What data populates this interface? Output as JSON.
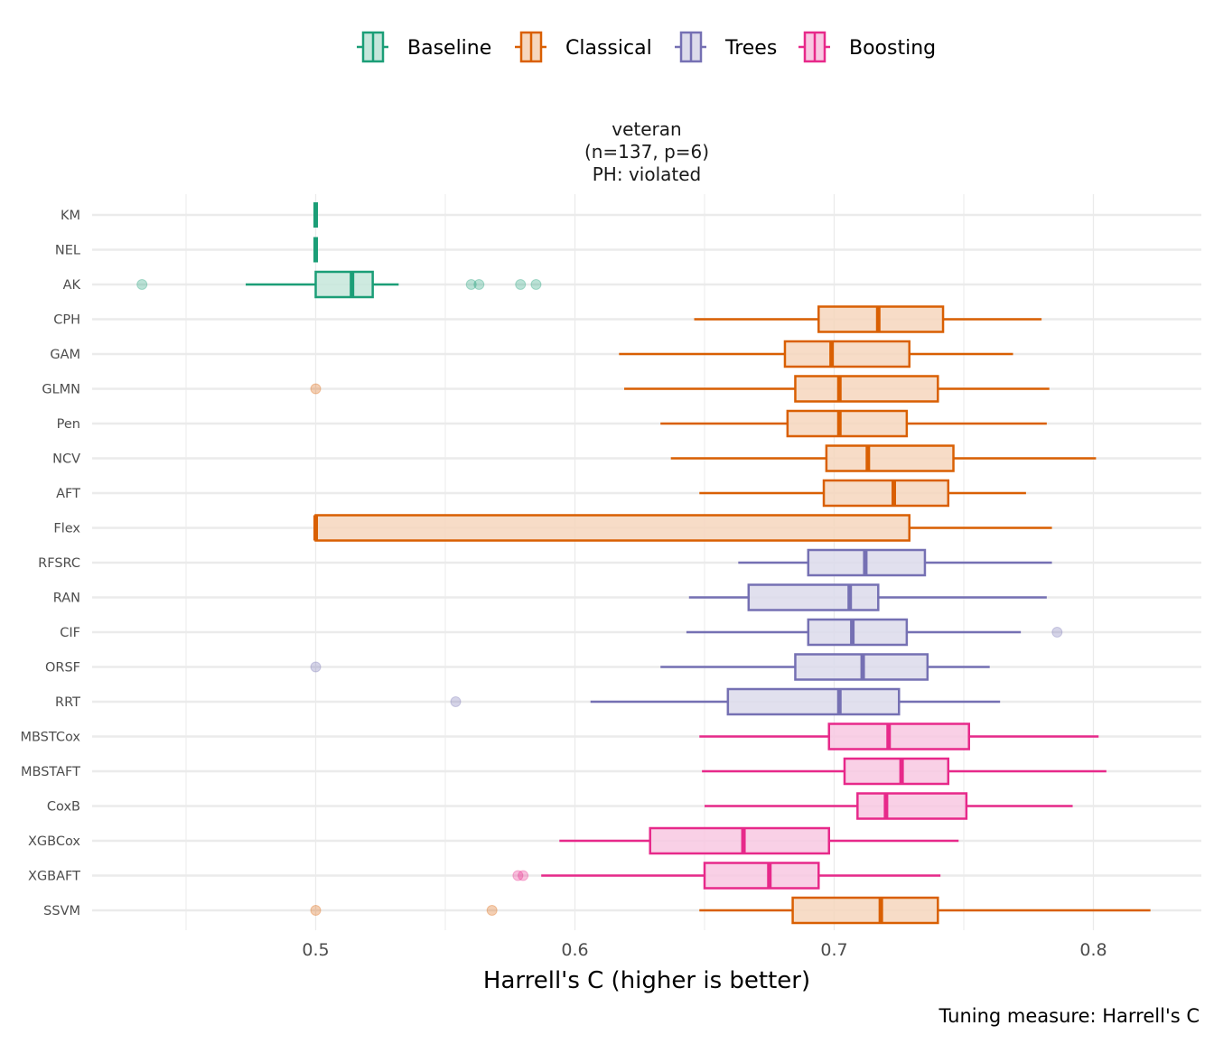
{
  "chart_data": {
    "type": "boxplot",
    "orientation": "horizontal",
    "panel_title": [
      "veteran",
      "(n=137, p=6)",
      "PH: violated"
    ],
    "xlabel": "Harrell's C (higher is better)",
    "ylabel": "",
    "caption": "Tuning measure: Harrell's C",
    "xlim": [
      0.417,
      0.828
    ],
    "x_ticks": [
      0.5,
      0.6,
      0.7,
      0.8
    ],
    "x_tick_labels": [
      "0.5",
      "0.6",
      "0.7",
      "0.8"
    ],
    "x_minor_grid": [
      0.45,
      0.55,
      0.65,
      0.75
    ],
    "grid": true,
    "legend_position": "top",
    "legend": [
      {
        "name": "Baseline",
        "color": "#1b9e77"
      },
      {
        "name": "Classical",
        "color": "#d95f02"
      },
      {
        "name": "Trees",
        "color": "#7570b3"
      },
      {
        "name": "Boosting",
        "color": "#e7298a"
      }
    ],
    "series": [
      {
        "name": "KM",
        "group": "Baseline",
        "whisker_low": 0.5,
        "q1": 0.5,
        "median": 0.5,
        "q3": 0.5,
        "whisker_high": 0.5,
        "outliers": []
      },
      {
        "name": "NEL",
        "group": "Baseline",
        "whisker_low": 0.5,
        "q1": 0.5,
        "median": 0.5,
        "q3": 0.5,
        "whisker_high": 0.5,
        "outliers": []
      },
      {
        "name": "AK",
        "group": "Baseline",
        "whisker_low": 0.473,
        "q1": 0.5,
        "median": 0.514,
        "q3": 0.522,
        "whisker_high": 0.532,
        "outliers": [
          0.433,
          0.56,
          0.563,
          0.579,
          0.585
        ]
      },
      {
        "name": "CPH",
        "group": "Classical",
        "whisker_low": 0.646,
        "q1": 0.694,
        "median": 0.717,
        "q3": 0.742,
        "whisker_high": 0.78,
        "outliers": []
      },
      {
        "name": "GAM",
        "group": "Classical",
        "whisker_low": 0.617,
        "q1": 0.681,
        "median": 0.699,
        "q3": 0.729,
        "whisker_high": 0.769,
        "outliers": []
      },
      {
        "name": "GLMN",
        "group": "Classical",
        "whisker_low": 0.619,
        "q1": 0.685,
        "median": 0.702,
        "q3": 0.74,
        "whisker_high": 0.783,
        "outliers": [
          0.5
        ]
      },
      {
        "name": "Pen",
        "group": "Classical",
        "whisker_low": 0.633,
        "q1": 0.682,
        "median": 0.702,
        "q3": 0.728,
        "whisker_high": 0.782,
        "outliers": []
      },
      {
        "name": "NCV",
        "group": "Classical",
        "whisker_low": 0.637,
        "q1": 0.697,
        "median": 0.713,
        "q3": 0.746,
        "whisker_high": 0.801,
        "outliers": []
      },
      {
        "name": "AFT",
        "group": "Classical",
        "whisker_low": 0.648,
        "q1": 0.696,
        "median": 0.723,
        "q3": 0.744,
        "whisker_high": 0.774,
        "outliers": []
      },
      {
        "name": "Flex",
        "group": "Classical",
        "whisker_low": 0.5,
        "q1": 0.5,
        "median": 0.5,
        "q3": 0.729,
        "whisker_high": 0.784,
        "outliers": []
      },
      {
        "name": "RFSRC",
        "group": "Trees",
        "whisker_low": 0.663,
        "q1": 0.69,
        "median": 0.712,
        "q3": 0.735,
        "whisker_high": 0.784,
        "outliers": []
      },
      {
        "name": "RAN",
        "group": "Trees",
        "whisker_low": 0.644,
        "q1": 0.667,
        "median": 0.706,
        "q3": 0.717,
        "whisker_high": 0.782,
        "outliers": []
      },
      {
        "name": "CIF",
        "group": "Trees",
        "whisker_low": 0.643,
        "q1": 0.69,
        "median": 0.707,
        "q3": 0.728,
        "whisker_high": 0.772,
        "outliers": [
          0.786
        ]
      },
      {
        "name": "ORSF",
        "group": "Trees",
        "whisker_low": 0.633,
        "q1": 0.685,
        "median": 0.711,
        "q3": 0.736,
        "whisker_high": 0.76,
        "outliers": [
          0.5
        ]
      },
      {
        "name": "RRT",
        "group": "Trees",
        "whisker_low": 0.606,
        "q1": 0.659,
        "median": 0.702,
        "q3": 0.725,
        "whisker_high": 0.764,
        "outliers": [
          0.554
        ]
      },
      {
        "name": "MBSTCox",
        "group": "Boosting",
        "whisker_low": 0.648,
        "q1": 0.698,
        "median": 0.721,
        "q3": 0.752,
        "whisker_high": 0.802,
        "outliers": []
      },
      {
        "name": "MBSTAFT",
        "group": "Boosting",
        "whisker_low": 0.649,
        "q1": 0.704,
        "median": 0.726,
        "q3": 0.744,
        "whisker_high": 0.805,
        "outliers": []
      },
      {
        "name": "CoxB",
        "group": "Boosting",
        "whisker_low": 0.65,
        "q1": 0.709,
        "median": 0.72,
        "q3": 0.751,
        "whisker_high": 0.792,
        "outliers": []
      },
      {
        "name": "XGBCox",
        "group": "Boosting",
        "whisker_low": 0.594,
        "q1": 0.629,
        "median": 0.665,
        "q3": 0.698,
        "whisker_high": 0.748,
        "outliers": []
      },
      {
        "name": "XGBAFT",
        "group": "Boosting",
        "whisker_low": 0.587,
        "q1": 0.65,
        "median": 0.675,
        "q3": 0.694,
        "whisker_high": 0.741,
        "outliers": [
          0.578,
          0.58
        ]
      },
      {
        "name": "SSVM",
        "group": "Classical",
        "whisker_low": 0.648,
        "q1": 0.684,
        "median": 0.718,
        "q3": 0.74,
        "whisker_high": 0.822,
        "outliers": [
          0.5,
          0.568
        ]
      }
    ]
  }
}
